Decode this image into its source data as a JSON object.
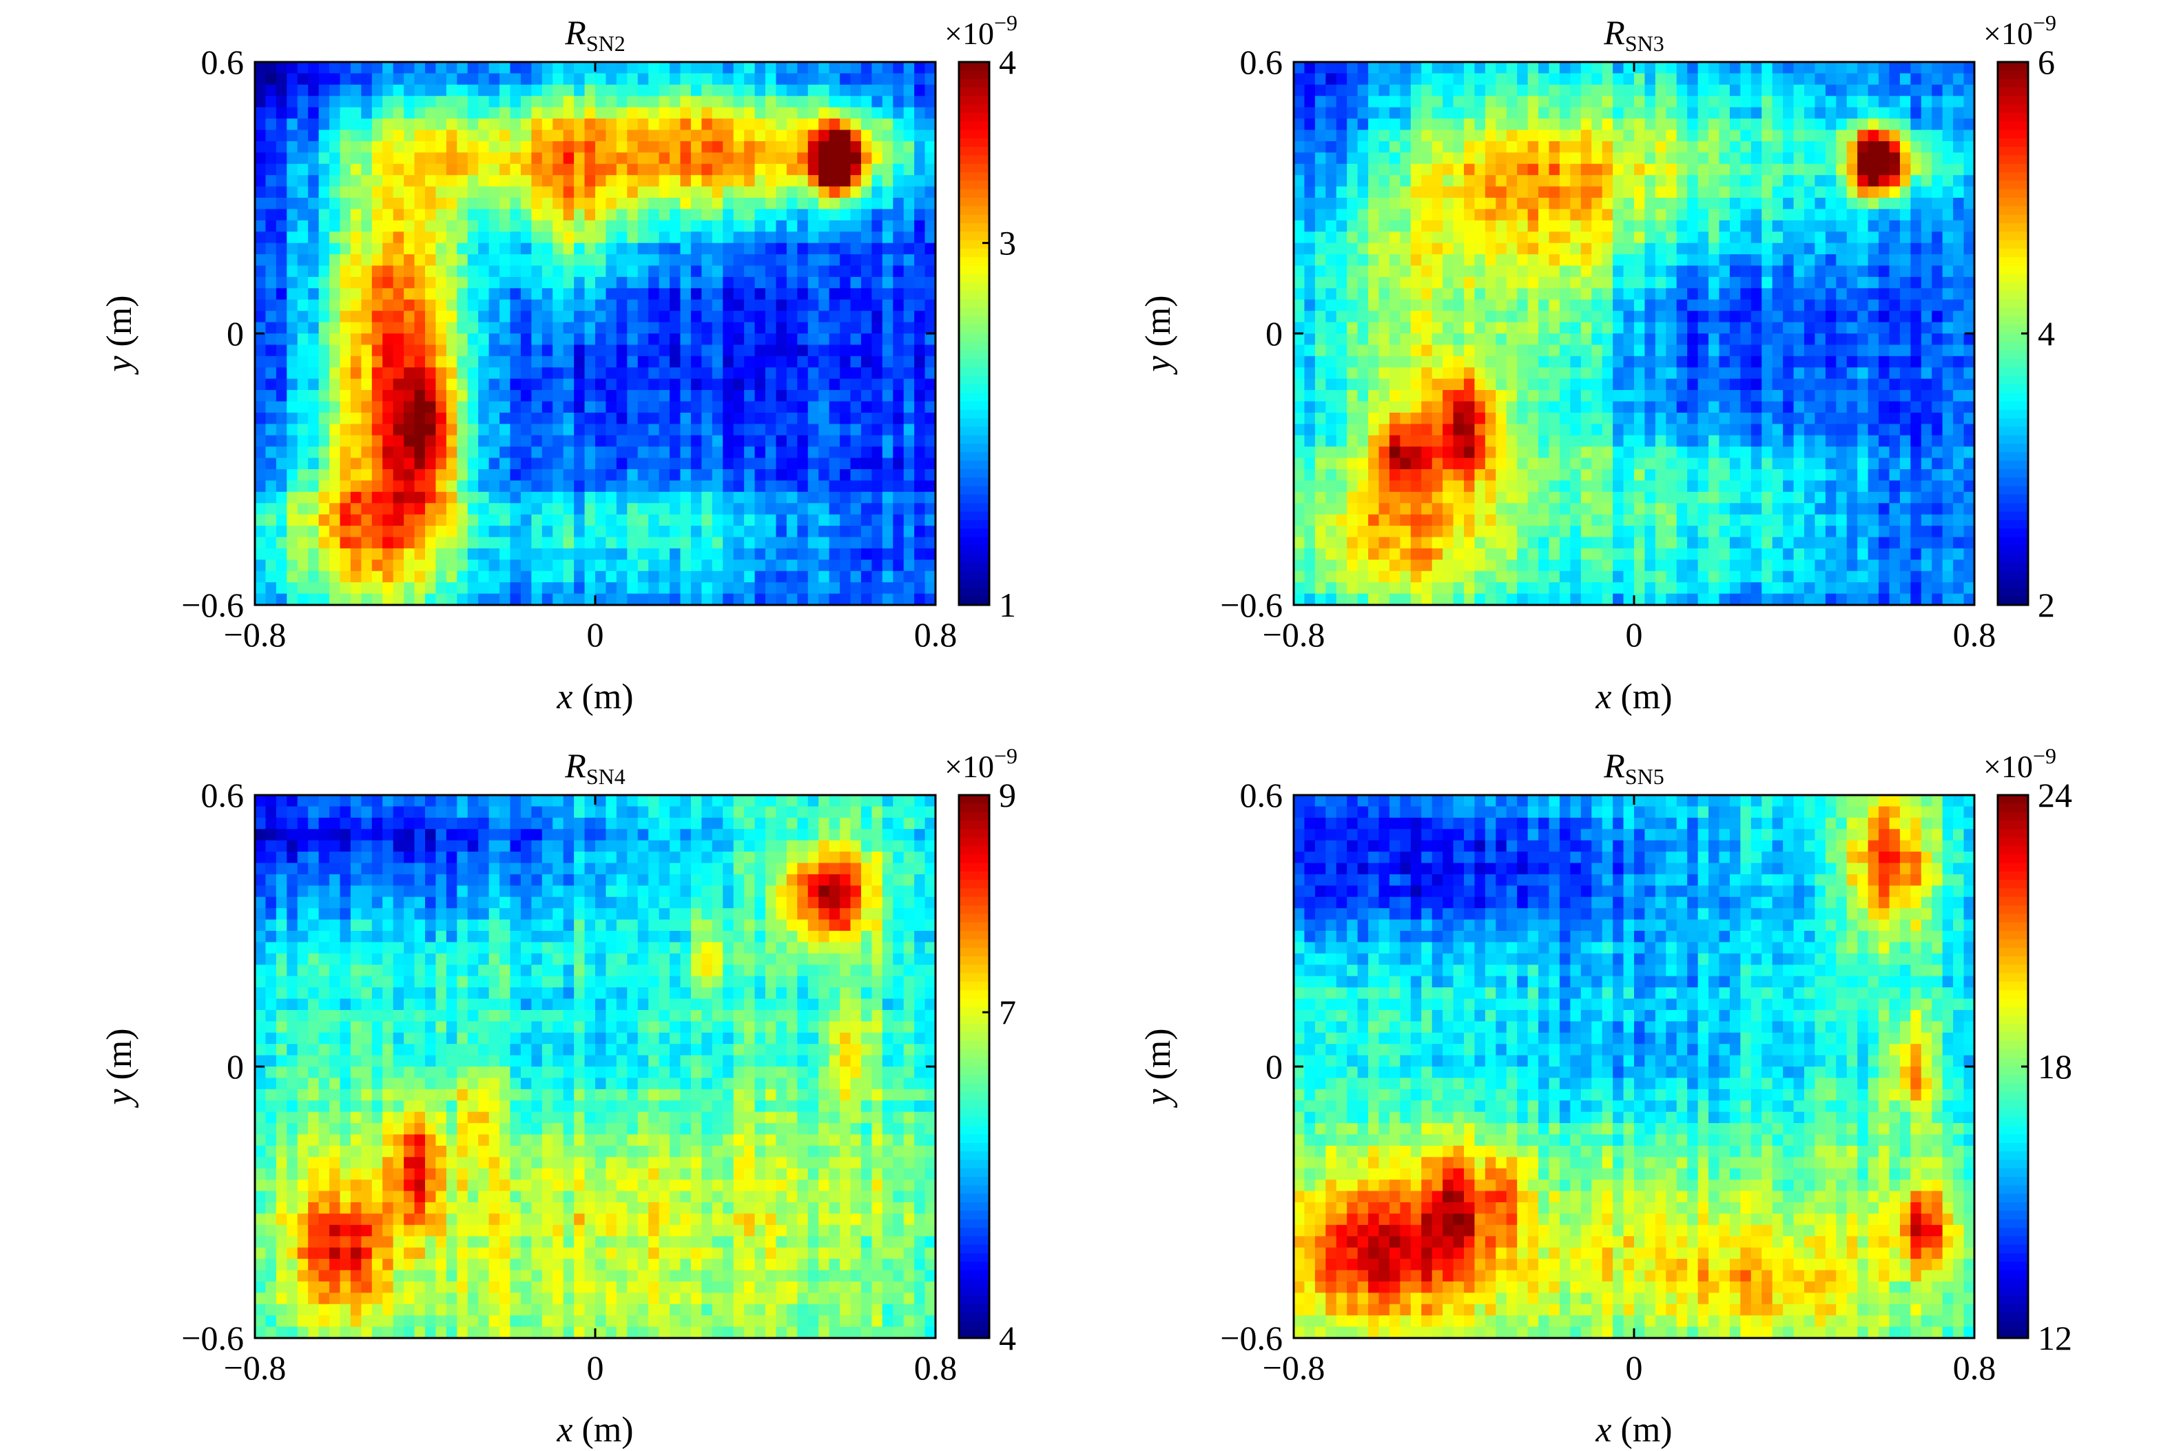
{
  "chart_data": [
    {
      "type": "heatmap",
      "title_main": "R",
      "title_sub": "SN2",
      "xlabel_var": "x",
      "xlabel_unit": " (m)",
      "ylabel_var": "y",
      "ylabel_unit": " (m)",
      "xlim": [
        -0.8,
        0.8
      ],
      "ylim": [
        -0.6,
        0.6
      ],
      "xticks": [
        "−0.8",
        "0",
        "0.8"
      ],
      "yticks": [
        "−0.6",
        "0",
        "0.6"
      ],
      "colorbar": {
        "range": [
          1,
          4
        ],
        "ticks": [
          "1",
          "3",
          "4"
        ],
        "tick_values": [
          1,
          3,
          4
        ],
        "exp_prefix": "×10",
        "exp": "−9"
      },
      "background_level": 0.18,
      "features": [
        {
          "x": -0.48,
          "y": -0.15,
          "sx": 0.12,
          "sy": 0.35,
          "a": 0.42
        },
        {
          "x": -0.45,
          "y": 0.05,
          "sx": 0.14,
          "sy": 0.25,
          "a": 0.28
        },
        {
          "x": -0.35,
          "y": 0.4,
          "sx": 0.25,
          "sy": 0.08,
          "a": 0.25
        },
        {
          "x": 0.1,
          "y": 0.4,
          "sx": 0.3,
          "sy": 0.12,
          "a": 0.35
        },
        {
          "x": -0.05,
          "y": 0.25,
          "sx": 0.1,
          "sy": 0.15,
          "a": 0.25
        },
        {
          "x": 0.35,
          "y": 0.4,
          "sx": 0.18,
          "sy": 0.1,
          "a": 0.3
        },
        {
          "x": 0.1,
          "y": -0.45,
          "sx": 0.3,
          "sy": 0.1,
          "a": 0.22
        },
        {
          "x": -0.6,
          "y": -0.45,
          "sx": 0.18,
          "sy": 0.12,
          "a": 0.32
        },
        {
          "x": -0.4,
          "y": -0.22,
          "sx": 0.05,
          "sy": 0.1,
          "a": 0.35
        },
        {
          "x": 0.57,
          "y": 0.38,
          "sx": 0.035,
          "sy": 0.05,
          "a": 0.85
        },
        {
          "x": 0.62,
          "y": 0.4,
          "sx": 0.12,
          "sy": 0.06,
          "a": 0.3
        }
      ]
    },
    {
      "type": "heatmap",
      "title_main": "R",
      "title_sub": "SN3",
      "xlabel_var": "x",
      "xlabel_unit": " (m)",
      "ylabel_var": "y",
      "ylabel_unit": " (m)",
      "xlim": [
        -0.8,
        0.8
      ],
      "ylim": [
        -0.6,
        0.6
      ],
      "xticks": [
        "−0.8",
        "0",
        "0.8"
      ],
      "yticks": [
        "−0.6",
        "0",
        "0.6"
      ],
      "colorbar": {
        "range": [
          2,
          6
        ],
        "ticks": [
          "2",
          "4",
          "6"
        ],
        "tick_values": [
          2,
          4,
          6
        ],
        "exp_prefix": "×10",
        "exp": "−9"
      },
      "background_level": 0.2,
      "features": [
        {
          "x": -0.5,
          "y": -0.05,
          "sx": 0.22,
          "sy": 0.4,
          "a": 0.35
        },
        {
          "x": -0.4,
          "y": -0.2,
          "sx": 0.05,
          "sy": 0.08,
          "a": 0.45
        },
        {
          "x": -0.55,
          "y": -0.26,
          "sx": 0.04,
          "sy": 0.06,
          "a": 0.35
        },
        {
          "x": 0.1,
          "y": 0.38,
          "sx": 0.3,
          "sy": 0.15,
          "a": 0.3
        },
        {
          "x": -0.3,
          "y": 0.35,
          "sx": 0.2,
          "sy": 0.12,
          "a": 0.22
        },
        {
          "x": 0.1,
          "y": -0.4,
          "sx": 0.3,
          "sy": 0.15,
          "a": 0.25
        },
        {
          "x": -0.6,
          "y": -0.45,
          "sx": 0.2,
          "sy": 0.12,
          "a": 0.3
        },
        {
          "x": 0.57,
          "y": 0.38,
          "sx": 0.04,
          "sy": 0.05,
          "a": 0.8
        },
        {
          "x": 0.62,
          "y": 0.38,
          "sx": 0.1,
          "sy": 0.06,
          "a": 0.3
        },
        {
          "x": -0.15,
          "y": 0.1,
          "sx": 0.1,
          "sy": 0.2,
          "a": 0.18
        }
      ]
    },
    {
      "type": "heatmap",
      "title_main": "R",
      "title_sub": "SN4",
      "xlabel_var": "x",
      "xlabel_unit": " (m)",
      "ylabel_var": "y",
      "ylabel_unit": " (m)",
      "xlim": [
        -0.8,
        0.8
      ],
      "ylim": [
        -0.6,
        0.6
      ],
      "xticks": [
        "−0.8",
        "0",
        "0.8"
      ],
      "yticks": [
        "−0.6",
        "0",
        "0.6"
      ],
      "colorbar": {
        "range": [
          4,
          9
        ],
        "ticks": [
          "4",
          "7",
          "9"
        ],
        "tick_values": [
          4,
          7,
          9
        ],
        "exp_prefix": "×10",
        "exp": "−9"
      },
      "background_level": 0.4,
      "features": [
        {
          "x": 0.0,
          "y": -0.35,
          "sx": 0.7,
          "sy": 0.25,
          "a": 0.2
        },
        {
          "x": -0.6,
          "y": -0.4,
          "sx": 0.08,
          "sy": 0.1,
          "a": 0.35
        },
        {
          "x": -0.42,
          "y": -0.22,
          "sx": 0.04,
          "sy": 0.1,
          "a": 0.35
        },
        {
          "x": -0.28,
          "y": -0.1,
          "sx": 0.03,
          "sy": 0.06,
          "a": 0.2
        },
        {
          "x": 0.55,
          "y": 0.38,
          "sx": 0.08,
          "sy": 0.08,
          "a": 0.55
        },
        {
          "x": 0.27,
          "y": 0.25,
          "sx": 0.03,
          "sy": 0.08,
          "a": 0.25
        },
        {
          "x": 0.6,
          "y": 0.05,
          "sx": 0.04,
          "sy": 0.08,
          "a": 0.2
        },
        {
          "x": -0.4,
          "y": 0.5,
          "sx": 0.4,
          "sy": 0.1,
          "a": -0.2
        },
        {
          "x": 0.0,
          "y": 0.0,
          "sx": 0.15,
          "sy": 0.15,
          "a": -0.1
        }
      ]
    },
    {
      "type": "heatmap",
      "title_main": "R",
      "title_sub": "SN5",
      "xlabel_var": "x",
      "xlabel_unit": " (m)",
      "ylabel_var": "y",
      "ylabel_unit": " (m)",
      "xlim": [
        -0.8,
        0.8
      ],
      "ylim": [
        -0.6,
        0.6
      ],
      "xticks": [
        "−0.8",
        "0",
        "0.8"
      ],
      "yticks": [
        "−0.6",
        "0",
        "0.6"
      ],
      "colorbar": {
        "range": [
          12,
          24
        ],
        "ticks": [
          "12",
          "18",
          "24"
        ],
        "tick_values": [
          12,
          18,
          24
        ],
        "exp_prefix": "×10",
        "exp": "−9"
      },
      "background_level": 0.38,
      "features": [
        {
          "x": 0.0,
          "y": -0.4,
          "sx": 0.8,
          "sy": 0.18,
          "a": 0.22
        },
        {
          "x": -0.6,
          "y": -0.4,
          "sx": 0.15,
          "sy": 0.12,
          "a": 0.35
        },
        {
          "x": -0.42,
          "y": -0.3,
          "sx": 0.05,
          "sy": 0.1,
          "a": 0.3
        },
        {
          "x": -0.3,
          "y": -0.28,
          "sx": 0.03,
          "sy": 0.06,
          "a": 0.25
        },
        {
          "x": 0.6,
          "y": 0.45,
          "sx": 0.07,
          "sy": 0.12,
          "a": 0.45
        },
        {
          "x": 0.65,
          "y": 0.0,
          "sx": 0.04,
          "sy": 0.08,
          "a": 0.35
        },
        {
          "x": 0.68,
          "y": -0.35,
          "sx": 0.05,
          "sy": 0.06,
          "a": 0.35
        },
        {
          "x": 0.3,
          "y": -0.5,
          "sx": 0.15,
          "sy": 0.08,
          "a": 0.15
        },
        {
          "x": -0.4,
          "y": 0.45,
          "sx": 0.4,
          "sy": 0.12,
          "a": -0.22
        },
        {
          "x": 0.0,
          "y": 0.05,
          "sx": 0.2,
          "sy": 0.15,
          "a": -0.1
        }
      ]
    }
  ]
}
